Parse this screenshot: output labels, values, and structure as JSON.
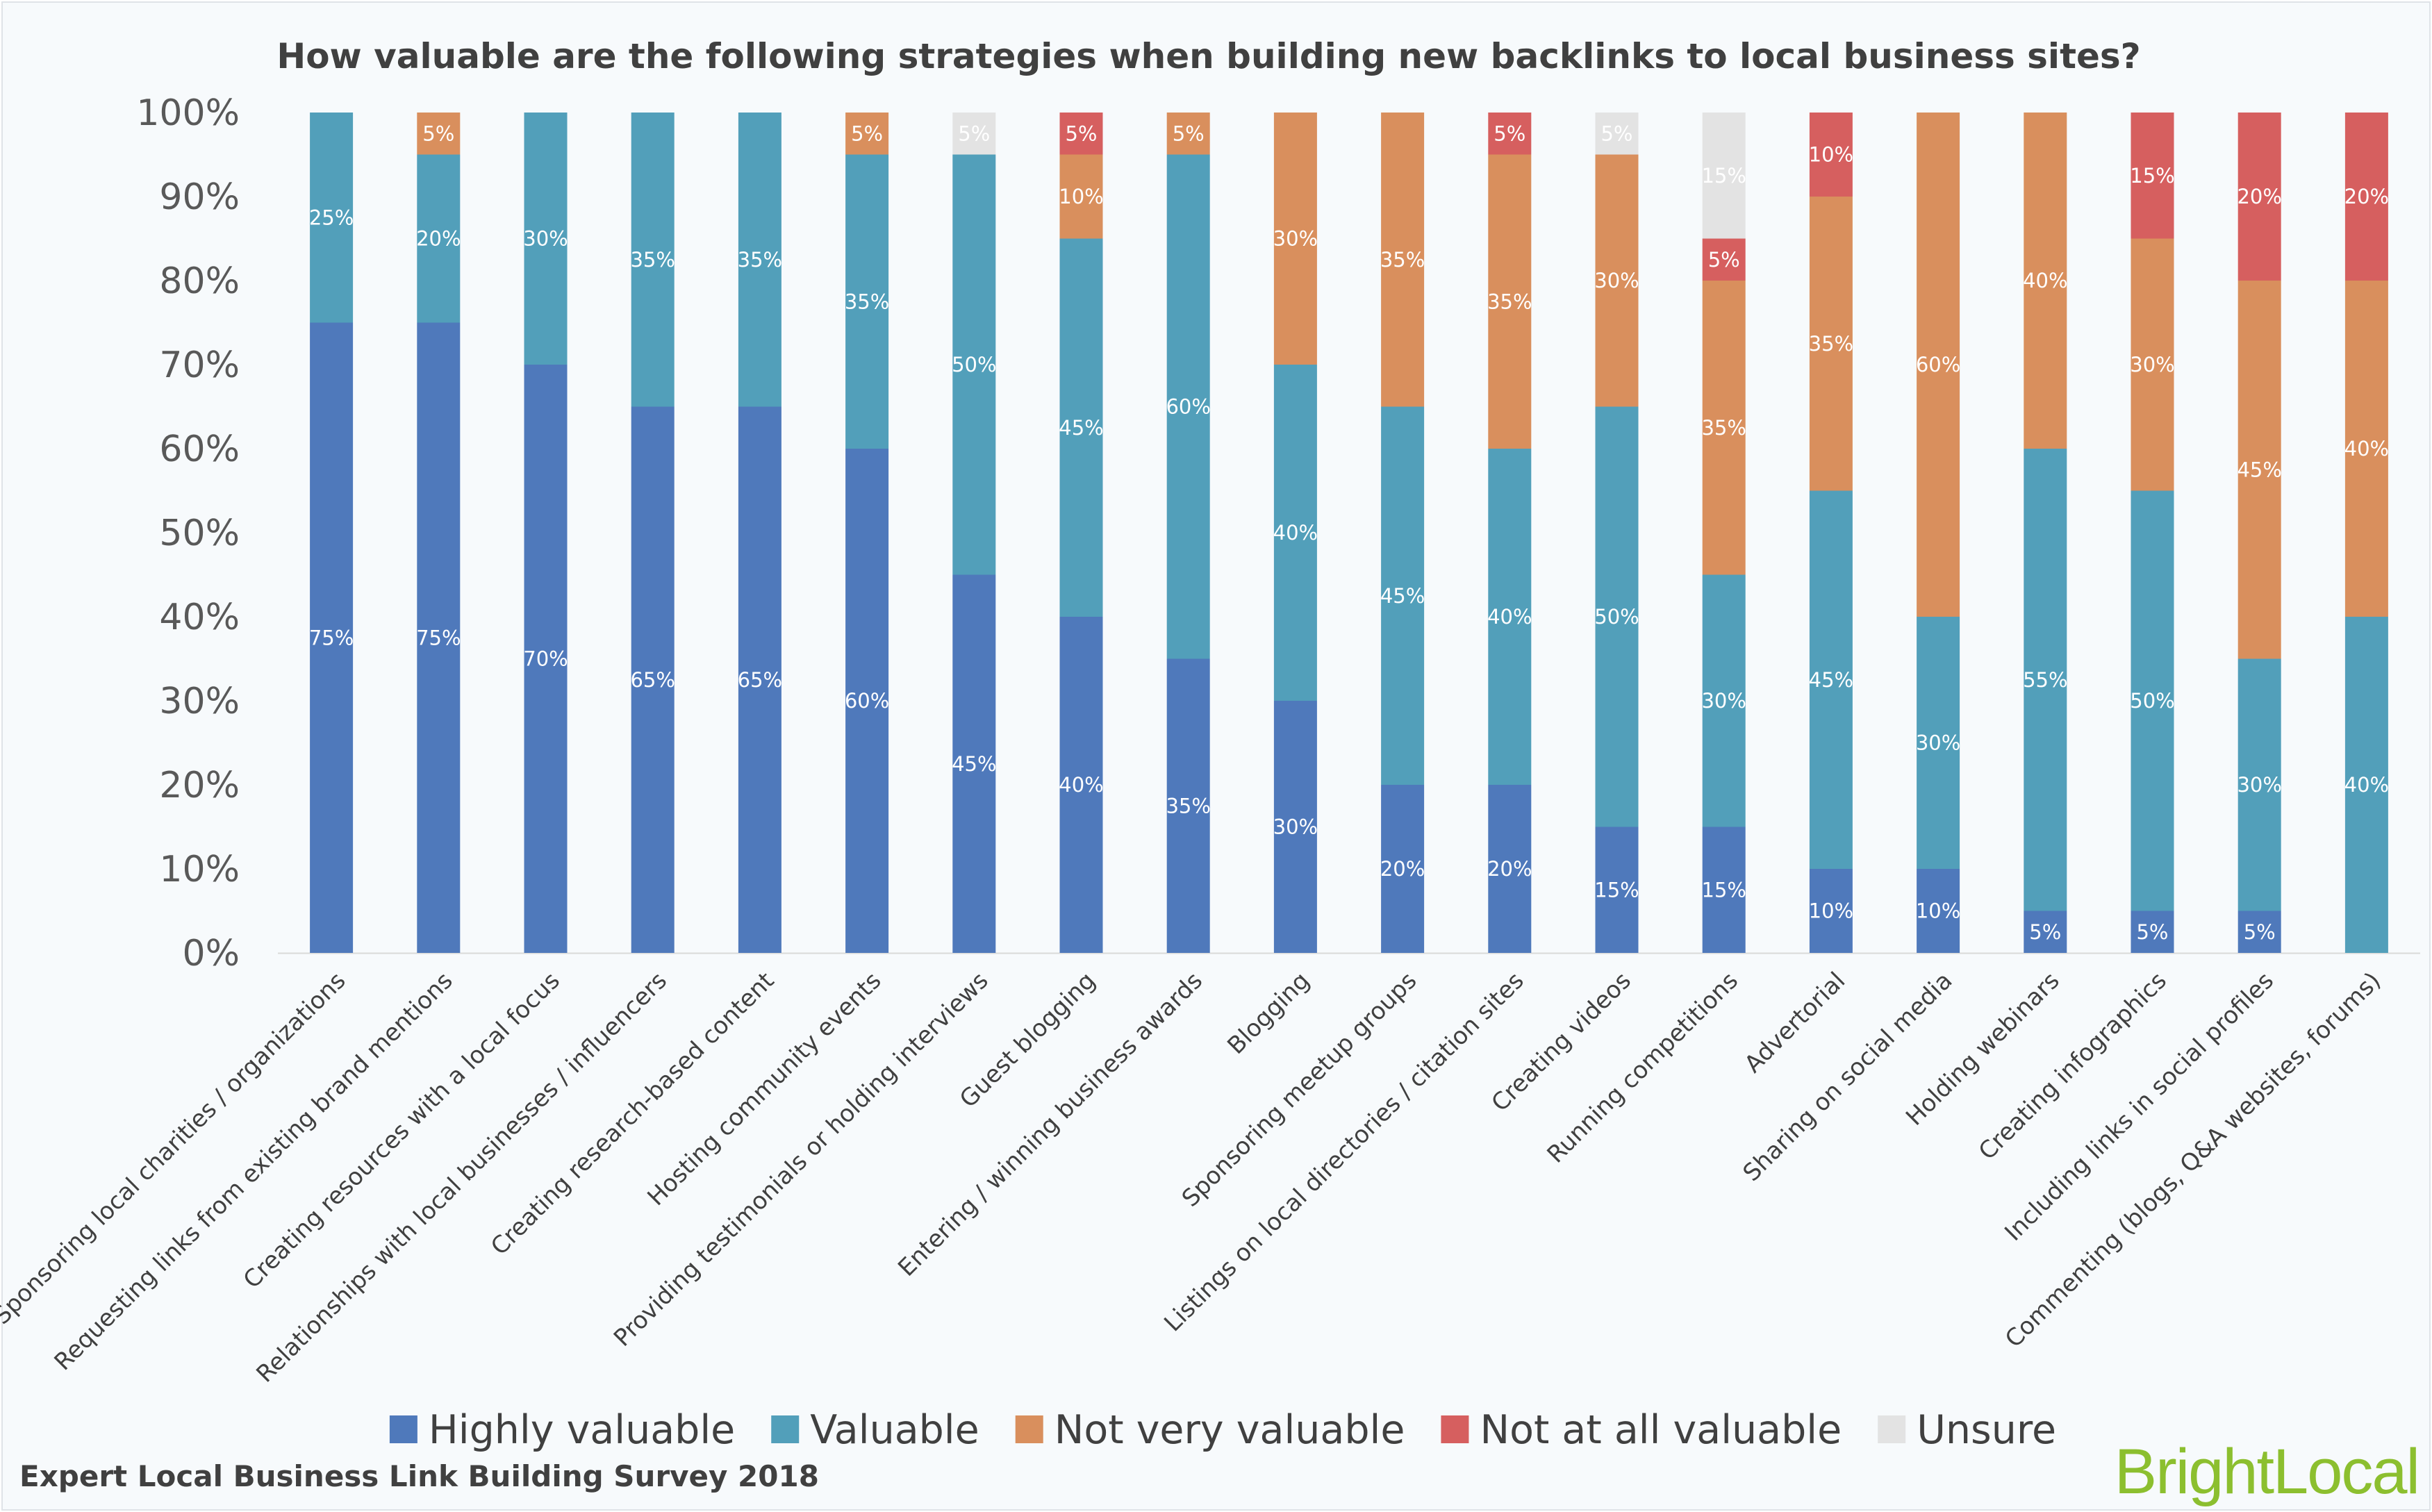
{
  "footer_text": "Expert Local Business Link Building Survey 2018",
  "brand_text": "BrightLocal",
  "colors": {
    "highly_valuable": "#4f79bb",
    "valuable": "#529fba",
    "not_very_valuable": "#d98f5d",
    "not_at_all_valuable": "#d65f5f",
    "unsure": "#e3e3e3",
    "brand": "#8cbf2f"
  },
  "chart_data": {
    "type": "bar",
    "stacked": true,
    "title": "How valuable are the following strategies when building new backlinks to local business sites?",
    "xlabel": "",
    "ylabel": "",
    "ylim": [
      0,
      100
    ],
    "yticks": [
      "0%",
      "10%",
      "20%",
      "30%",
      "40%",
      "50%",
      "60%",
      "70%",
      "80%",
      "90%",
      "100%"
    ],
    "legend_position": "bottom",
    "categories": [
      "Sponsoring local charities / organizations",
      "Requesting links from existing brand mentions",
      "Creating resources with a local focus",
      "Relationships with local businesses / influencers",
      "Creating research-based content",
      "Hosting community events",
      "Providing testimonials or holding interviews",
      "Guest blogging",
      "Entering / winning business awards",
      "Blogging",
      "Sponsoring meetup groups",
      "Listings on local directories / citation sites",
      "Creating videos",
      "Running competitions",
      "Advertorial",
      "Sharing on social media",
      "Holding webinars",
      "Creating infographics",
      "Including links in social profiles",
      "Commenting (blogs, Q&A websites, forums)"
    ],
    "series": [
      {
        "name": "Highly valuable",
        "color": "#4f79bb",
        "values": [
          75,
          75,
          70,
          65,
          65,
          60,
          45,
          40,
          35,
          30,
          20,
          20,
          15,
          15,
          10,
          10,
          5,
          5,
          5,
          0
        ]
      },
      {
        "name": "Valuable",
        "color": "#529fba",
        "values": [
          25,
          20,
          30,
          35,
          35,
          35,
          50,
          45,
          60,
          40,
          45,
          40,
          50,
          30,
          45,
          30,
          55,
          50,
          30,
          40
        ]
      },
      {
        "name": "Not very valuable",
        "color": "#d98f5d",
        "values": [
          0,
          5,
          0,
          0,
          0,
          5,
          0,
          10,
          5,
          30,
          35,
          35,
          30,
          35,
          35,
          60,
          40,
          30,
          45,
          40
        ]
      },
      {
        "name": "Not at all valuable",
        "color": "#d65f5f",
        "values": [
          0,
          0,
          0,
          0,
          0,
          0,
          0,
          5,
          0,
          0,
          0,
          5,
          0,
          5,
          10,
          0,
          0,
          15,
          20,
          20
        ]
      },
      {
        "name": "Unsure",
        "color": "#e3e3e3",
        "values": [
          0,
          0,
          0,
          0,
          0,
          0,
          5,
          0,
          0,
          0,
          0,
          0,
          5,
          15,
          0,
          0,
          0,
          0,
          0,
          0
        ]
      }
    ]
  }
}
